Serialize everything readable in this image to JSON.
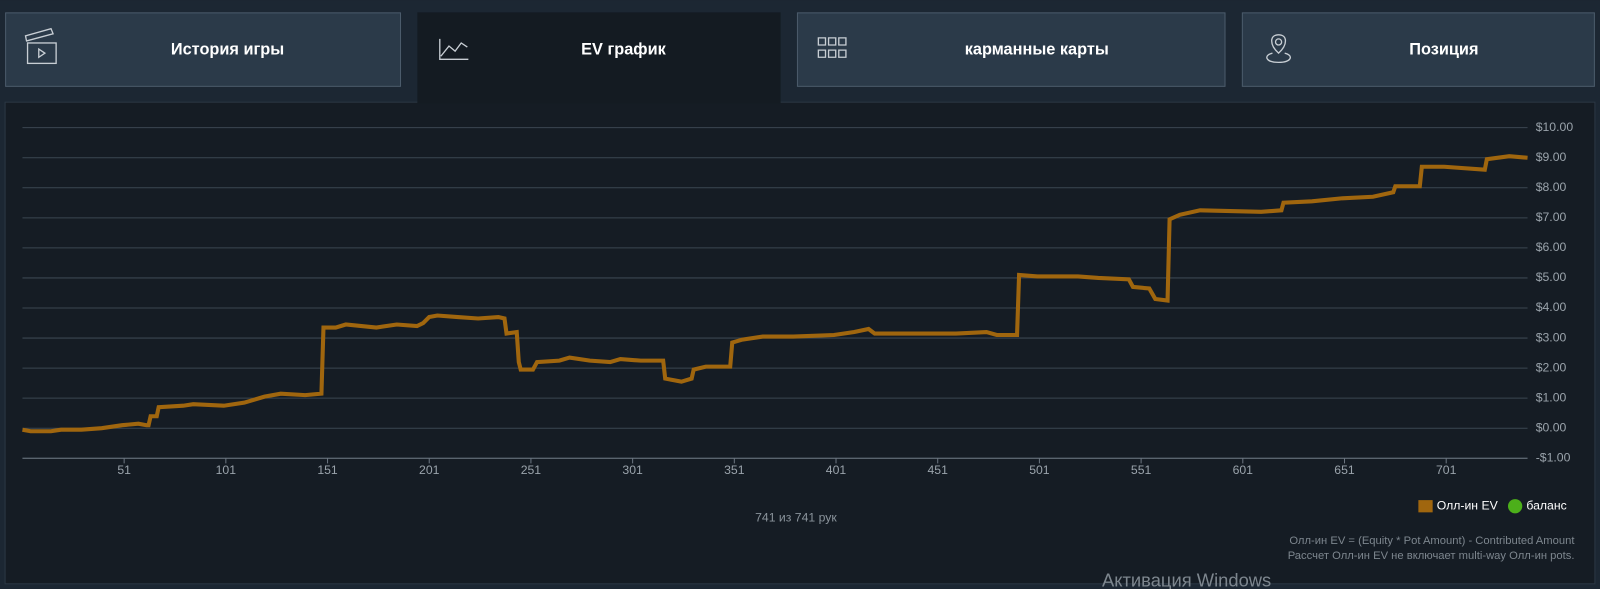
{
  "tabs": [
    "История игры",
    "EV график",
    "карманные карты",
    "Позиция"
  ],
  "chart_data": {
    "type": "line",
    "x": [
      1,
      5,
      15,
      20,
      30,
      40,
      50,
      58,
      62,
      63,
      64,
      67,
      68,
      80,
      85,
      100,
      110,
      115,
      120,
      128,
      140,
      148,
      149,
      155,
      160,
      175,
      185,
      195,
      198,
      201,
      205,
      215,
      225,
      235,
      238,
      239,
      244,
      245,
      246,
      252,
      254,
      265,
      270,
      280,
      290,
      295,
      305,
      316,
      317,
      325,
      330,
      331,
      337,
      349,
      350,
      355,
      365,
      380,
      400,
      410,
      417,
      420,
      435,
      460,
      475,
      480,
      490,
      491,
      500,
      520,
      530,
      545,
      547,
      555,
      558,
      564,
      565,
      570,
      580,
      610,
      620,
      621,
      635,
      650,
      665,
      675,
      676,
      688,
      689,
      700,
      720,
      721,
      732,
      741
    ],
    "values": [
      -0.05,
      -0.1,
      -0.1,
      -0.05,
      -0.05,
      0.0,
      0.1,
      0.15,
      0.1,
      0.1,
      0.4,
      0.4,
      0.7,
      0.75,
      0.8,
      0.75,
      0.85,
      0.95,
      1.05,
      1.15,
      1.1,
      1.15,
      3.35,
      3.35,
      3.45,
      3.35,
      3.45,
      3.4,
      3.5,
      3.7,
      3.75,
      3.7,
      3.65,
      3.7,
      3.65,
      3.15,
      3.2,
      2.2,
      1.95,
      1.95,
      2.2,
      2.25,
      2.35,
      2.25,
      2.2,
      2.3,
      2.25,
      2.25,
      1.65,
      1.55,
      1.65,
      1.95,
      2.05,
      2.05,
      2.85,
      2.95,
      3.05,
      3.05,
      3.1,
      3.2,
      3.3,
      3.15,
      3.15,
      3.15,
      3.2,
      3.1,
      3.1,
      5.1,
      5.05,
      5.05,
      5.0,
      4.95,
      4.7,
      4.65,
      4.3,
      4.25,
      6.95,
      7.1,
      7.25,
      7.2,
      7.25,
      7.5,
      7.55,
      7.65,
      7.7,
      7.85,
      8.05,
      8.05,
      8.7,
      8.7,
      8.6,
      8.95,
      9.05,
      9.0
    ],
    "series": [
      {
        "name": "Олл-ин EV",
        "color": "#a0660e"
      },
      {
        "name": "баланс",
        "color": "#4caf1a",
        "visible": false
      }
    ],
    "xlim": [
      1,
      741
    ],
    "xticks": [
      51,
      101,
      151,
      201,
      251,
      301,
      351,
      401,
      451,
      501,
      551,
      601,
      651,
      701
    ],
    "ylim": [
      -1,
      10
    ],
    "yticks": [
      {
        "value": -1,
        "label": "-$1.00"
      },
      {
        "value": 0,
        "label": "$0.00"
      },
      {
        "value": 1,
        "label": "$1.00"
      },
      {
        "value": 2,
        "label": "$2.00"
      },
      {
        "value": 3,
        "label": "$3.00"
      },
      {
        "value": 4,
        "label": "$4.00"
      },
      {
        "value": 5,
        "label": "$5.00"
      },
      {
        "value": 6,
        "label": "$6.00"
      },
      {
        "value": 7,
        "label": "$7.00"
      },
      {
        "value": 8,
        "label": "$8.00"
      },
      {
        "value": 9,
        "label": "$9.00"
      },
      {
        "value": 10,
        "label": "$10.00"
      }
    ],
    "grid": true
  },
  "hand_count": "741 из 741 рук",
  "notes": [
    "Олл-ин EV = (Equity * Pot Amount) - Contributed Amount",
    "Рассчет Олл-ин EV не включает multi-way Олл-ин pots."
  ],
  "watermark": "Активация Windows"
}
